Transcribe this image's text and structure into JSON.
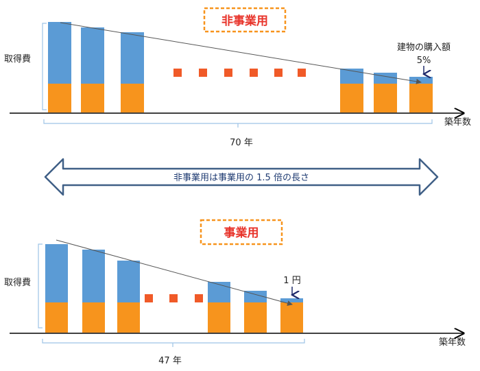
{
  "colors": {
    "blue": "#5b9bd5",
    "orange": "#f7941d",
    "dot": "#f05a28",
    "title_text": "#e8332a",
    "title_border": "#f7941d",
    "arrow_fill": "#ffffff",
    "arrow_stroke": "#3f5f86",
    "arrow_text": "#1f3b72",
    "small_arrow": "#1f2a6b",
    "axis": "#000000",
    "brace": "#9dc3e6",
    "trend": "#555555"
  },
  "top": {
    "title": "非事業用",
    "ylabel": "取得費",
    "xlabel": "築年数",
    "span_label": "70 年",
    "end_label": "建物の購入額",
    "end_value": "5%"
  },
  "middle": {
    "text": "非事業用は事業用の 1.5 倍の長さ"
  },
  "bottom": {
    "title": "事業用",
    "ylabel": "取得費",
    "xlabel": "築年数",
    "span_label": "47 年",
    "end_label": "1 円"
  }
}
